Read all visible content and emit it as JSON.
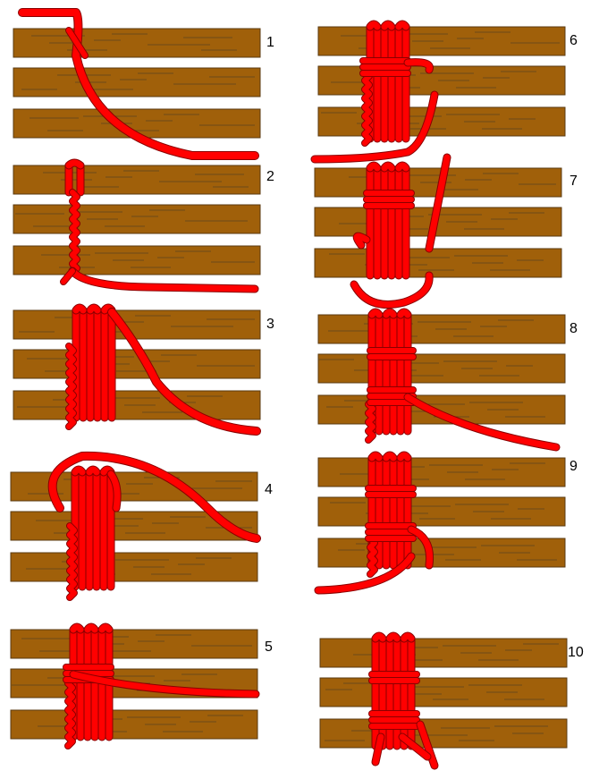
{
  "colors": {
    "wood": "#a0600a",
    "wood_grain": "#6b4a1a",
    "wood_edge": "#5a3a10",
    "rope": "#ff0000",
    "rope_edge": "#8a0000",
    "label": "#000000"
  },
  "steps": [
    {
      "label": "1"
    },
    {
      "label": "2"
    },
    {
      "label": "3"
    },
    {
      "label": "4"
    },
    {
      "label": "5"
    },
    {
      "label": "6"
    },
    {
      "label": "7"
    },
    {
      "label": "8"
    },
    {
      "label": "9"
    },
    {
      "label": "10"
    }
  ]
}
